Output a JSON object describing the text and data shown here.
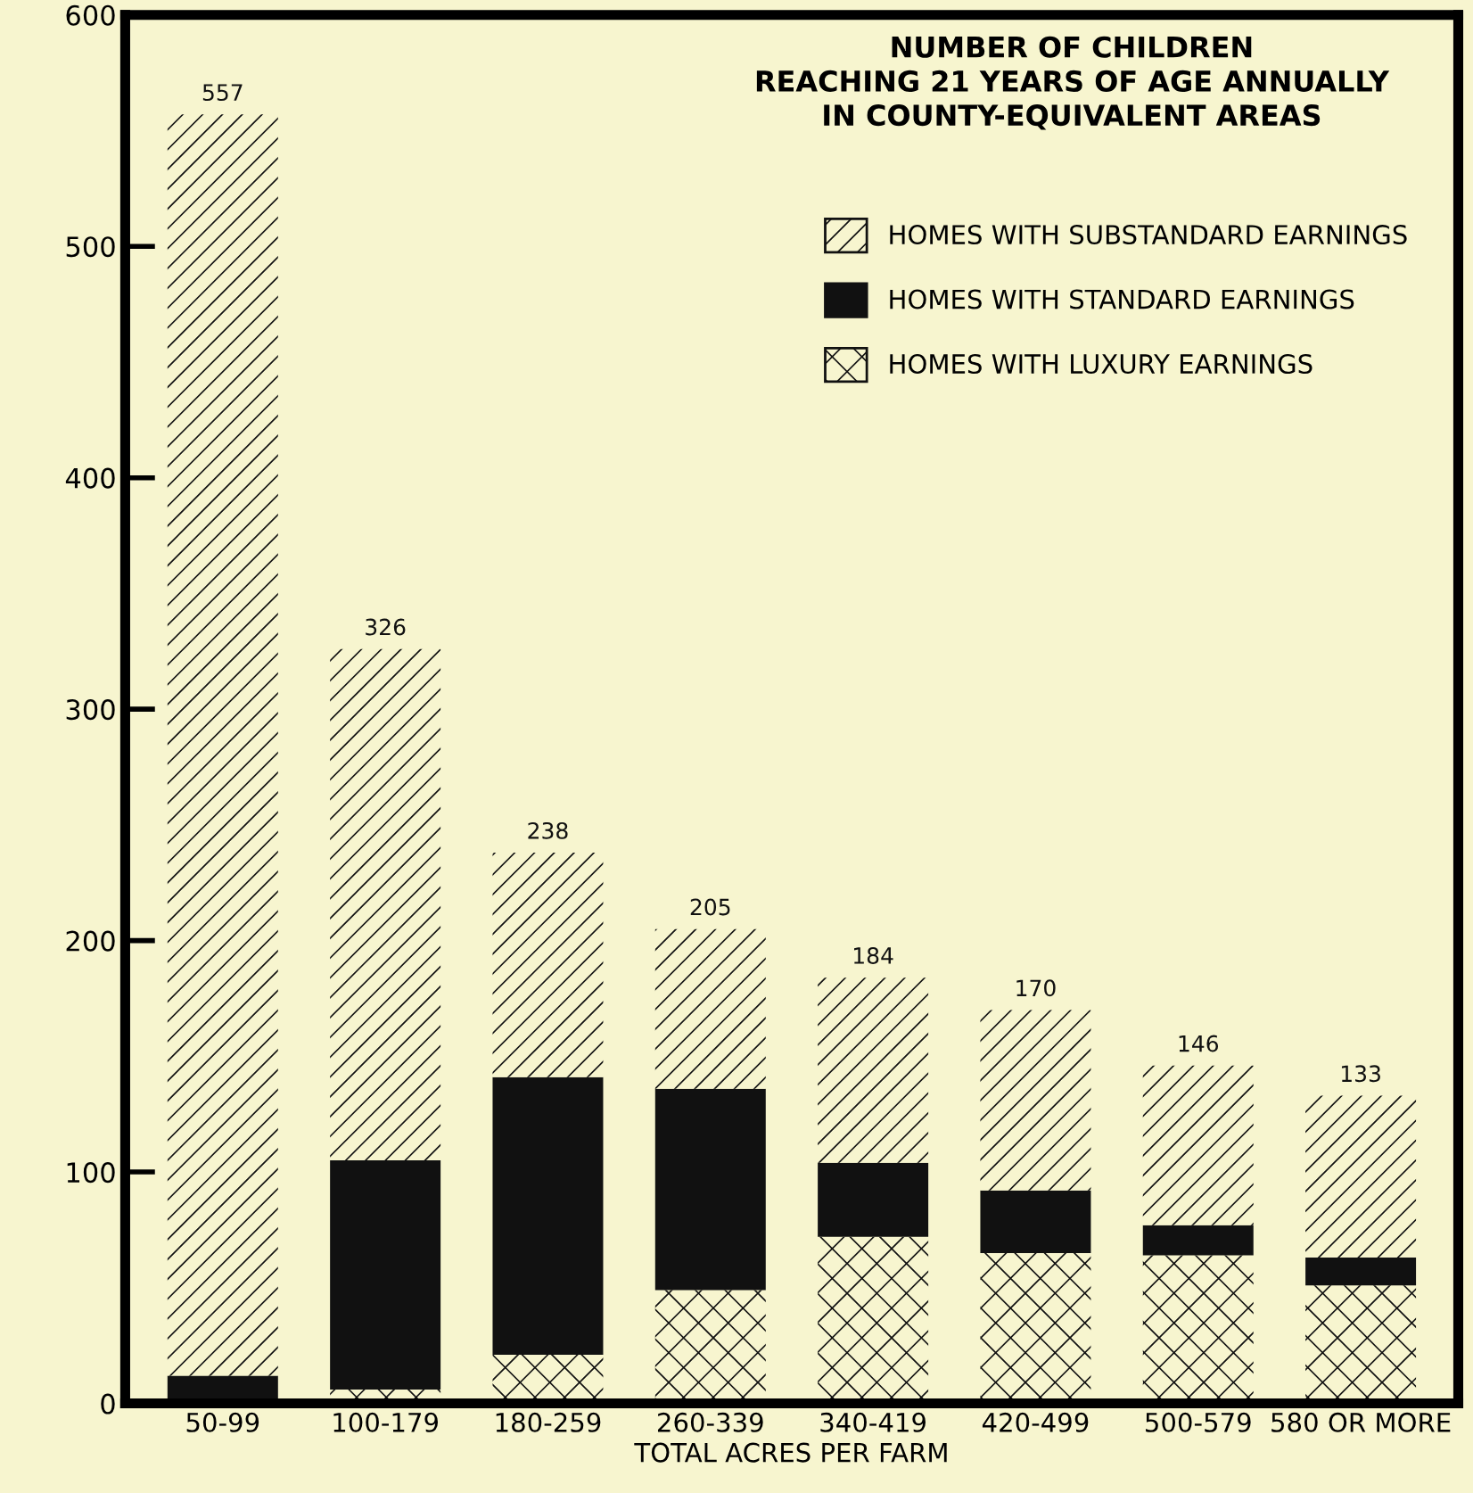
{
  "chart_data": {
    "type": "bar",
    "stacked": true,
    "title": "NUMBER OF CHILDREN\nREACHING 21 YEARS OF AGE ANNUALLY\nIN COUNTY-EQUIVALENT AREAS",
    "xlabel": "TOTAL ACRES PER FARM",
    "categories": [
      "50-99",
      "100-179",
      "180-259",
      "260-339",
      "340-419",
      "420-499",
      "500-579",
      "580 OR MORE"
    ],
    "series": [
      {
        "name": "HOMES WITH LUXURY EARNINGS",
        "color": "#f7f5cf",
        "values": [
          0,
          6,
          21,
          49,
          72,
          65,
          64,
          51
        ]
      },
      {
        "name": "HOMES WITH STANDARD EARNINGS",
        "color": "#111111",
        "values": [
          12,
          99,
          120,
          87,
          32,
          27,
          13,
          12
        ]
      },
      {
        "name": "HOMES WITH SUBSTANDARD EARNINGS",
        "color": "#f7f5cf",
        "values": [
          545,
          221,
          97,
          69,
          80,
          78,
          69,
          70
        ]
      }
    ],
    "totals": [
      "557",
      "326",
      "238",
      "205",
      "184",
      "170",
      "146",
      "133"
    ],
    "ylim": [
      0,
      600
    ],
    "yticks": [
      0,
      100,
      200,
      300,
      400,
      500,
      600
    ],
    "grid": false,
    "legend": "top right"
  }
}
